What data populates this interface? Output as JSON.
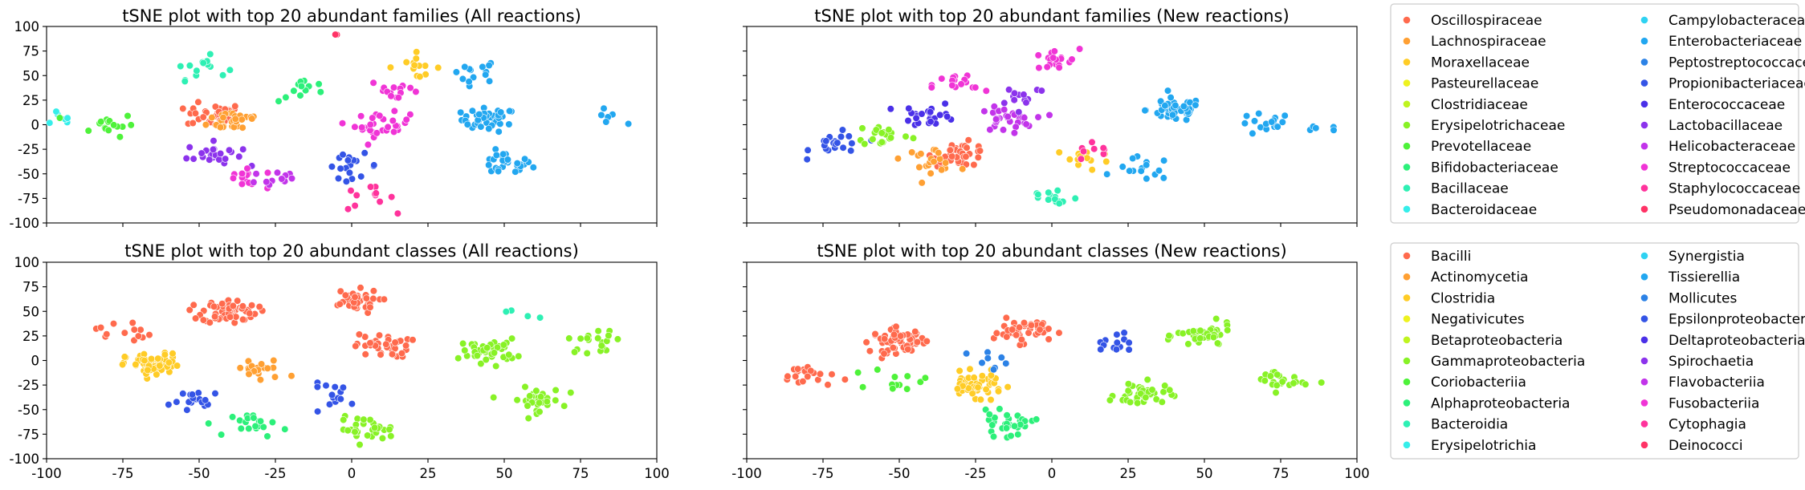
{
  "xlim": [
    -100,
    100
  ],
  "ylim": [
    -100,
    100
  ],
  "xticks": [
    -100,
    -75,
    -50,
    -25,
    0,
    25,
    50,
    75,
    100
  ],
  "yticks": [
    100,
    75,
    50,
    25,
    0,
    -25,
    -50,
    -75,
    -100
  ],
  "family_legend": {
    "labels": [
      "Oscillospiraceae",
      "Lachnospiraceae",
      "Moraxellaceae",
      "Pasteurellaceae",
      "Clostridiaceae",
      "Erysipelotrichaceae",
      "Prevotellaceae",
      "Bifidobacteriaceae",
      "Bacillaceae",
      "Bacteroidaceae",
      "Campylobacteraceae",
      "Enterobacteriaceae",
      "Peptostreptococcaceae",
      "Propionibacteriaceae",
      "Enterococcaceae",
      "Lactobacillaceae",
      "Helicobacteraceae",
      "Streptococcaceae",
      "Staphylococcaceae",
      "Pseudomonadaceae"
    ],
    "colors": [
      "#ff6a4d",
      "#ffa033",
      "#ffcc26",
      "#eef21f",
      "#bff41f",
      "#88f226",
      "#4ef23a",
      "#2cf07a",
      "#2ef0b4",
      "#36eeea",
      "#2fd2f2",
      "#22a7f0",
      "#2c82e6",
      "#3454e6",
      "#4a30e8",
      "#8c33ec",
      "#c234ea",
      "#f034d6",
      "#ff339c",
      "#ff3366"
    ]
  },
  "class_legend": {
    "labels": [
      "Bacilli",
      "Actinomycetia",
      "Clostridia",
      "Negativicutes",
      "Betaproteobacteria",
      "Gammaproteobacteria",
      "Coriobacteriia",
      "Alphaproteobacteria",
      "Bacteroidia",
      "Erysipelotrichia",
      "Synergistia",
      "Tissierellia",
      "Mollicutes",
      "Epsilonproteobacteria",
      "Deltaproteobacteria",
      "Spirochaetia",
      "Flavobacteriia",
      "Fusobacteriia",
      "Cytophagia",
      "Deinococci"
    ],
    "colors": [
      "#ff6a4d",
      "#ffa033",
      "#ffcc26",
      "#eef21f",
      "#bff41f",
      "#88f226",
      "#4ef23a",
      "#2cf07a",
      "#2ef0b4",
      "#36eeea",
      "#2fd2f2",
      "#22a7f0",
      "#2c82e6",
      "#3454e6",
      "#4a30e8",
      "#8c33ec",
      "#c234ea",
      "#f034d6",
      "#ff339c",
      "#ff3366"
    ]
  },
  "chart_data": [
    {
      "type": "scatter",
      "title": "tSNE plot with top 20 abundant families (All reactions)",
      "xlabel": "",
      "ylabel": "",
      "xlim": [
        -100,
        100
      ],
      "ylim": [
        -100,
        100
      ],
      "legend": "family_legend",
      "clusters": [
        {
          "group": "Bacteroidaceae",
          "x": -95,
          "y": 5,
          "points": 6
        },
        {
          "group": "Pseudomonadaceae",
          "x": 0,
          "y": 90,
          "points": 2
        },
        {
          "group": "Enterobacteriaceae",
          "x": 40,
          "y": 55,
          "points": 14
        },
        {
          "group": "Enterobacteriaceae",
          "x": 45,
          "y": 5,
          "points": 40
        },
        {
          "group": "Enterobacteriaceae",
          "x": 50,
          "y": -40,
          "points": 28
        },
        {
          "group": "Enterobacteriaceae",
          "x": 86,
          "y": 5,
          "points": 6
        },
        {
          "group": "Oscillospiraceae",
          "x": -45,
          "y": 10,
          "points": 40
        },
        {
          "group": "Lachnospiraceae",
          "x": -38,
          "y": 5,
          "points": 30
        },
        {
          "group": "Prevotellaceae",
          "x": -80,
          "y": 0,
          "points": 16
        },
        {
          "group": "Bacillaceae",
          "x": -50,
          "y": 58,
          "points": 14
        },
        {
          "group": "Lactobacillaceae",
          "x": -45,
          "y": -30,
          "points": 24
        },
        {
          "group": "Streptococcaceae",
          "x": -35,
          "y": -55,
          "points": 16
        },
        {
          "group": "Streptococcaceae",
          "x": 10,
          "y": 0,
          "points": 30
        },
        {
          "group": "Streptococcaceae",
          "x": 15,
          "y": 35,
          "points": 14
        },
        {
          "group": "Propionibacteriaceae",
          "x": 0,
          "y": -42,
          "points": 18
        },
        {
          "group": "Moraxellaceae",
          "x": 20,
          "y": 60,
          "points": 14
        },
        {
          "group": "Staphylococcaceae",
          "x": 5,
          "y": -75,
          "points": 12
        },
        {
          "group": "Bifidobacteriaceae",
          "x": -15,
          "y": 35,
          "points": 12
        },
        {
          "group": "Helicobacteraceae",
          "x": -25,
          "y": -55,
          "points": 12
        }
      ]
    },
    {
      "type": "scatter",
      "title": "tSNE plot with top 20 abundant families (New reactions)",
      "xlabel": "",
      "ylabel": "",
      "xlim": [
        -100,
        100
      ],
      "ylim": [
        -100,
        100
      ],
      "legend": "family_legend",
      "clusters": [
        {
          "group": "Enterobacteriaceae",
          "x": 40,
          "y": 15,
          "points": 50
        },
        {
          "group": "Enterobacteriaceae",
          "x": 70,
          "y": 0,
          "points": 16
        },
        {
          "group": "Enterobacteriaceae",
          "x": 30,
          "y": -45,
          "points": 16
        },
        {
          "group": "Enterobacteriaceae",
          "x": 88,
          "y": -10,
          "points": 5
        },
        {
          "group": "Propionibacteriaceae",
          "x": -70,
          "y": -20,
          "points": 20
        },
        {
          "group": "Enterococcaceae",
          "x": -40,
          "y": 10,
          "points": 24
        },
        {
          "group": "Oscillospiraceae",
          "x": -30,
          "y": -30,
          "points": 36
        },
        {
          "group": "Lachnospiraceae",
          "x": -40,
          "y": -35,
          "points": 20
        },
        {
          "group": "Helicobacteraceae",
          "x": -15,
          "y": 5,
          "points": 32
        },
        {
          "group": "Streptococcaceae",
          "x": 0,
          "y": 65,
          "points": 18
        },
        {
          "group": "Streptococcaceae",
          "x": -30,
          "y": 40,
          "points": 16
        },
        {
          "group": "Moraxellaceae",
          "x": 10,
          "y": -35,
          "points": 16
        },
        {
          "group": "Bacillaceae",
          "x": 0,
          "y": -75,
          "points": 14
        },
        {
          "group": "Erysipelotrichaceae",
          "x": -55,
          "y": -10,
          "points": 20
        },
        {
          "group": "Lactobacillaceae",
          "x": -10,
          "y": 30,
          "points": 14
        },
        {
          "group": "Staphylococcaceae",
          "x": 15,
          "y": -25,
          "points": 8
        }
      ]
    },
    {
      "type": "scatter",
      "title": "tSNE plot with top 20 abundant classes (All reactions)",
      "xlabel": "",
      "ylabel": "",
      "xlim": [
        -100,
        100
      ],
      "ylim": [
        -100,
        100
      ],
      "legend": "class_legend",
      "clusters": [
        {
          "group": "Bacilli",
          "x": -40,
          "y": 50,
          "points": 60
        },
        {
          "group": "Bacilli",
          "x": 0,
          "y": 60,
          "points": 40
        },
        {
          "group": "Bacilli",
          "x": 10,
          "y": 15,
          "points": 40
        },
        {
          "group": "Bacilli",
          "x": -75,
          "y": 30,
          "points": 14
        },
        {
          "group": "Clostridia",
          "x": -65,
          "y": -5,
          "points": 60
        },
        {
          "group": "Actinomycetia",
          "x": -30,
          "y": -10,
          "points": 20
        },
        {
          "group": "Gammaproteobacteria",
          "x": 45,
          "y": 10,
          "points": 40
        },
        {
          "group": "Gammaproteobacteria",
          "x": 80,
          "y": 20,
          "points": 20
        },
        {
          "group": "Gammaproteobacteria",
          "x": 60,
          "y": -40,
          "points": 36
        },
        {
          "group": "Gammaproteobacteria",
          "x": 5,
          "y": -70,
          "points": 30
        },
        {
          "group": "Epsilonproteobacteria",
          "x": -50,
          "y": -42,
          "points": 18
        },
        {
          "group": "Epsilonproteobacteria",
          "x": -5,
          "y": -35,
          "points": 14
        },
        {
          "group": "Alphaproteobacteria",
          "x": -30,
          "y": -65,
          "points": 20
        },
        {
          "group": "Bacteroidia",
          "x": 50,
          "y": 50,
          "points": 4
        }
      ]
    },
    {
      "type": "scatter",
      "title": "tSNE plot with top 20 abundant classes (New reactions)",
      "xlabel": "",
      "ylabel": "",
      "xlim": [
        -100,
        100
      ],
      "ylim": [
        -100,
        100
      ],
      "legend": "class_legend",
      "clusters": [
        {
          "group": "Bacilli",
          "x": -50,
          "y": 20,
          "points": 60
        },
        {
          "group": "Bacilli",
          "x": -10,
          "y": 30,
          "points": 50
        },
        {
          "group": "Bacilli",
          "x": -80,
          "y": -15,
          "points": 20
        },
        {
          "group": "Clostridia",
          "x": -25,
          "y": -25,
          "points": 50
        },
        {
          "group": "Gammaproteobacteria",
          "x": 50,
          "y": 25,
          "points": 40
        },
        {
          "group": "Gammaproteobacteria",
          "x": 75,
          "y": -20,
          "points": 24
        },
        {
          "group": "Gammaproteobacteria",
          "x": 30,
          "y": -35,
          "points": 40
        },
        {
          "group": "Alphaproteobacteria",
          "x": -15,
          "y": -65,
          "points": 30
        },
        {
          "group": "Epsilonproteobacteria",
          "x": 22,
          "y": 20,
          "points": 14
        },
        {
          "group": "Coriobacteriia",
          "x": -50,
          "y": -20,
          "points": 12
        },
        {
          "group": "Mollicutes",
          "x": -20,
          "y": 0,
          "points": 8
        }
      ]
    }
  ]
}
